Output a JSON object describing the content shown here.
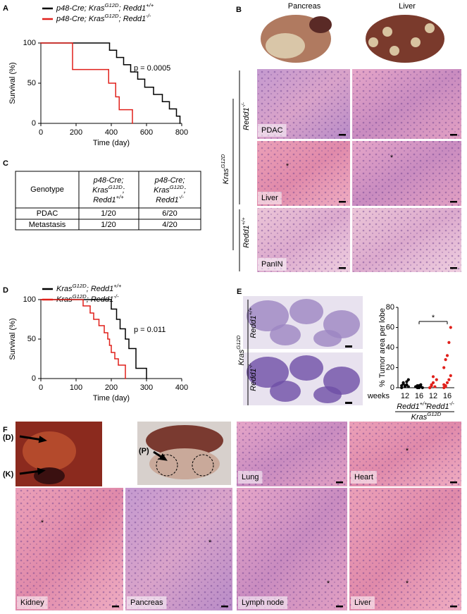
{
  "panel_labels": [
    "A",
    "B",
    "C",
    "D",
    "E",
    "F"
  ],
  "chart_data": [
    {
      "type": "line",
      "step": true,
      "x_label": "Time (day)",
      "y_label": "Survival (%)",
      "xlim": [
        0,
        800
      ],
      "xticks": [
        0,
        200,
        400,
        600,
        800
      ],
      "ylim": [
        0,
        100
      ],
      "yticks": [
        0,
        50,
        100
      ],
      "annotation": "p = 0.0005",
      "series": [
        {
          "name": [
            "p48-Cre; Kras",
            "G12D",
            "; Redd1",
            "+/+"
          ],
          "color": "#000000",
          "x": [
            0,
            390,
            430,
            470,
            510,
            550,
            590,
            640,
            690,
            730,
            770,
            790
          ],
          "values": [
            100,
            91,
            82,
            73,
            64,
            55,
            45,
            36,
            27,
            18,
            9,
            0
          ]
        },
        {
          "name": [
            "p48-Cre; Kras",
            "G12D",
            "; Redd1",
            "-/-"
          ],
          "color": "#e0201b",
          "x": [
            0,
            180,
            385,
            425,
            445,
            520
          ],
          "values": [
            100,
            67,
            50,
            33,
            17,
            0
          ]
        }
      ]
    },
    {
      "type": "line",
      "step": true,
      "x_label": "Time (day)",
      "y_label": "Survival (%)",
      "xlim": [
        0,
        400
      ],
      "xticks": [
        0,
        100,
        200,
        300,
        400
      ],
      "ylim": [
        0,
        100
      ],
      "yticks": [
        0,
        50,
        100
      ],
      "annotation": "p = 0.011",
      "series": [
        {
          "name": [
            "Kras",
            "G12D",
            "; Redd1",
            "+/+"
          ],
          "color": "#000000",
          "x": [
            0,
            200,
            215,
            225,
            240,
            250,
            270,
            300
          ],
          "values": [
            100,
            88,
            75,
            63,
            50,
            38,
            13,
            0
          ]
        },
        {
          "name": [
            "Kras",
            "G12D",
            "; Redd1",
            "-/-"
          ],
          "color": "#e0201b",
          "x": [
            0,
            120,
            140,
            150,
            165,
            180,
            190,
            195,
            200,
            210,
            220,
            240
          ],
          "values": [
            100,
            92,
            83,
            75,
            67,
            58,
            50,
            42,
            33,
            25,
            17,
            0
          ]
        }
      ]
    },
    {
      "type": "strip",
      "y_label": "% Tumor area per lobe",
      "x_label": "weeks",
      "categories": [
        "12",
        "16",
        "12",
        "16"
      ],
      "colors": [
        "#000000",
        "#000000",
        "#e0201b",
        "#e0201b"
      ],
      "values": [
        [
          2,
          5,
          1,
          3,
          8,
          0,
          4,
          2,
          6,
          1
        ],
        [
          1,
          0,
          2,
          3,
          0,
          1,
          2,
          0,
          1
        ],
        [
          0,
          2,
          5,
          1,
          8,
          0,
          3,
          11
        ],
        [
          0,
          2,
          5,
          8,
          12,
          20,
          28,
          32,
          45,
          60,
          3,
          1
        ]
      ],
      "ylim": [
        0,
        80
      ],
      "yticks": [
        0,
        20,
        40,
        60,
        80
      ],
      "group_labels": [
        [
          "Redd1",
          "+/+"
        ],
        [
          "Redd1",
          "-/-"
        ]
      ],
      "group_title": [
        "Kras",
        "G12D"
      ],
      "significance": "*"
    }
  ],
  "figure_b": {
    "columns": [
      "Pancreas",
      "Liver"
    ],
    "row_labels": [
      [
        "Redd1",
        "-/-"
      ],
      [
        "Redd1",
        "+/+"
      ]
    ],
    "group_label": [
      "Kras",
      "G12D"
    ],
    "image_labels": [
      "PDAC",
      "Liver",
      "PanIN"
    ],
    "asterisks": [
      "*",
      "*"
    ]
  },
  "table": {
    "header": [
      "Genotype",
      [
        [
          "p48-Cre;"
        ],
        [
          "Kras",
          "G12D",
          ";"
        ],
        [
          "Redd1",
          "+/+"
        ]
      ],
      [
        [
          "p48-Cre;"
        ],
        [
          "Kras",
          "G12D",
          ";"
        ],
        [
          "Redd1",
          "-/-"
        ]
      ]
    ],
    "rows": [
      [
        "PDAC",
        "1/20",
        "6/20"
      ],
      [
        "Metastasis",
        "1/20",
        "4/20"
      ]
    ]
  },
  "figure_e": {
    "group_label": [
      "Kras",
      "G12D"
    ],
    "row_labels": [
      [
        "Redd1",
        "+/+"
      ],
      [
        "Redd1",
        "-/-"
      ]
    ]
  },
  "figure_f": {
    "gross_labels": [
      "(D)",
      "(K)",
      "(P)"
    ],
    "image_labels": [
      "Lung",
      "Heart",
      "Kidney",
      "Pancreas",
      "Lymph node",
      "Liver"
    ],
    "asterisks": [
      "*",
      "*",
      "*",
      "*",
      "*"
    ]
  }
}
